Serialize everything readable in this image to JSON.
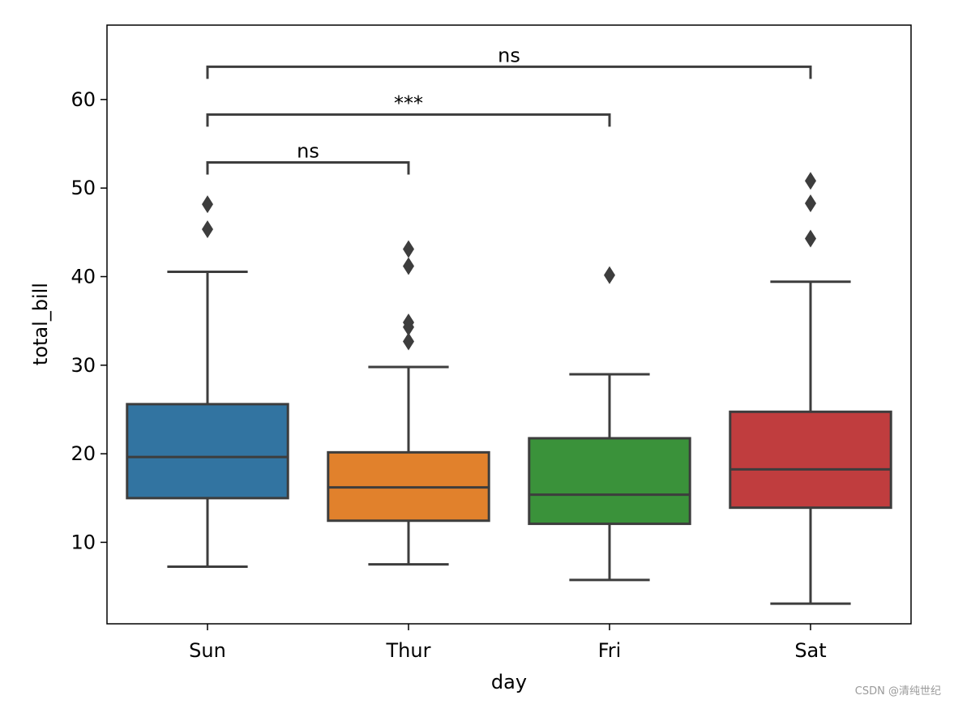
{
  "chart_data": {
    "type": "box",
    "title": "",
    "xlabel": "day",
    "ylabel": "total_bill",
    "ylim": [
      0.8,
      68.4
    ],
    "yticks": [
      10,
      20,
      30,
      40,
      50,
      60
    ],
    "categories": [
      "Sun",
      "Thur",
      "Fri",
      "Sat"
    ],
    "colors": [
      "#3274a1",
      "#e1812c",
      "#3a923a",
      "#c03d3e"
    ],
    "edge_color": "#3d3d3d",
    "boxes": [
      {
        "name": "Sun",
        "whisker_low": 7.25,
        "q1": 14.99,
        "median": 19.63,
        "q3": 25.6,
        "whisker_high": 40.55,
        "outliers": [
          45.35,
          48.17
        ]
      },
      {
        "name": "Thur",
        "whisker_low": 7.51,
        "q1": 12.44,
        "median": 16.2,
        "q3": 20.16,
        "whisker_high": 29.8,
        "outliers": [
          32.68,
          34.3,
          34.83,
          41.19,
          43.11
        ]
      },
      {
        "name": "Fri",
        "whisker_low": 5.75,
        "q1": 12.09,
        "median": 15.38,
        "q3": 21.75,
        "whisker_high": 28.97,
        "outliers": [
          40.17
        ]
      },
      {
        "name": "Sat",
        "whisker_low": 3.07,
        "q1": 13.91,
        "median": 18.24,
        "q3": 24.74,
        "whisker_high": 39.42,
        "outliers": [
          44.3,
          48.27,
          50.81
        ]
      }
    ],
    "annotations": [
      {
        "pair": [
          "Sun",
          "Thur"
        ],
        "y": 52.9,
        "label": "ns"
      },
      {
        "pair": [
          "Sun",
          "Fri"
        ],
        "y": 58.3,
        "label": "***"
      },
      {
        "pair": [
          "Sun",
          "Sat"
        ],
        "y": 63.7,
        "label": "ns"
      }
    ]
  },
  "watermark": "CSDN @清纯世纪"
}
